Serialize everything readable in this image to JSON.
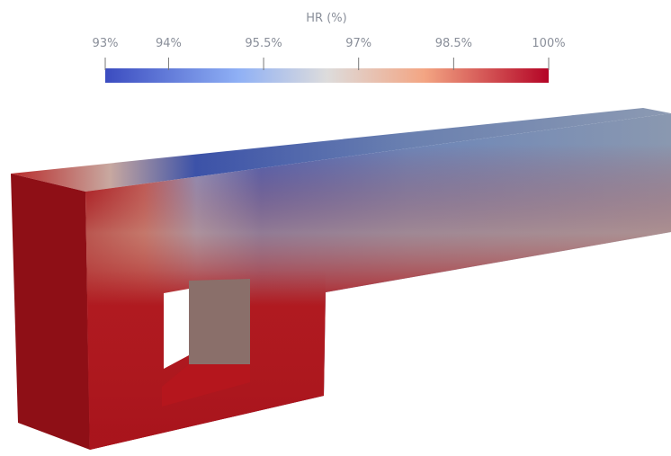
{
  "colorbar": {
    "title": "HR (%)",
    "range": [
      93,
      100
    ],
    "ticks": [
      {
        "value": 93,
        "label": "93%"
      },
      {
        "value": 94,
        "label": "94%"
      },
      {
        "value": 95.5,
        "label": "95.5%"
      },
      {
        "value": 97,
        "label": "97%"
      },
      {
        "value": 98.5,
        "label": "98.5%"
      },
      {
        "value": 100,
        "label": "100%"
      }
    ]
  }
}
